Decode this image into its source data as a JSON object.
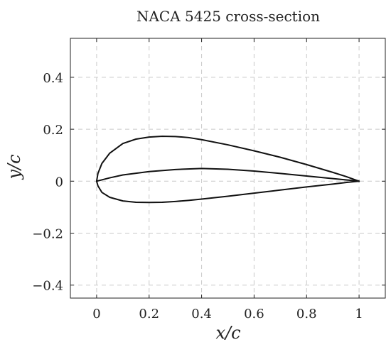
{
  "chart_data": {
    "type": "line",
    "title": "NACA 5425 cross-section",
    "xlabel": "x/c",
    "ylabel": "y/c",
    "xlim": [
      -0.1,
      1.1
    ],
    "ylim": [
      -0.45,
      0.55
    ],
    "xticks": [
      0,
      0.2,
      0.4,
      0.6,
      0.8,
      1
    ],
    "xtick_labels": [
      "0",
      "0.2",
      "0.4",
      "0.6",
      "0.8",
      "1"
    ],
    "yticks": [
      0.4,
      0.2,
      0,
      -0.2,
      -0.4
    ],
    "ytick_labels": [
      "0.4",
      "0.2",
      "0",
      "−0.2",
      "−0.4"
    ],
    "grid": true,
    "legend": "none",
    "series": [
      {
        "x": [
          0,
          0.005,
          0.02,
          0.05,
          0.1,
          0.15,
          0.2,
          0.25,
          0.3,
          0.35,
          0.4,
          0.5,
          0.6,
          0.7,
          0.8,
          0.9,
          0.95,
          1
        ],
        "y": [
          0,
          0.03,
          0.068,
          0.108,
          0.145,
          0.162,
          0.17,
          0.173,
          0.172,
          0.168,
          0.16,
          0.14,
          0.117,
          0.092,
          0.064,
          0.034,
          0.018,
          0
        ]
      },
      {
        "x": [
          0,
          0.005,
          0.02,
          0.05,
          0.1,
          0.15,
          0.2,
          0.25,
          0.3,
          0.35,
          0.4,
          0.5,
          0.6,
          0.7,
          0.8,
          0.9,
          0.95,
          1
        ],
        "y": [
          0,
          -0.018,
          -0.043,
          -0.062,
          -0.076,
          -0.081,
          -0.082,
          -0.081,
          -0.078,
          -0.074,
          -0.069,
          -0.058,
          -0.046,
          -0.034,
          -0.022,
          -0.011,
          -0.005,
          0
        ]
      },
      {
        "x": [
          0,
          0.05,
          0.1,
          0.2,
          0.3,
          0.4,
          0.5,
          0.6,
          0.7,
          0.8,
          0.9,
          1
        ],
        "y": [
          0,
          0.013,
          0.024,
          0.037,
          0.045,
          0.049,
          0.046,
          0.039,
          0.03,
          0.02,
          0.01,
          0
        ]
      }
    ]
  }
}
